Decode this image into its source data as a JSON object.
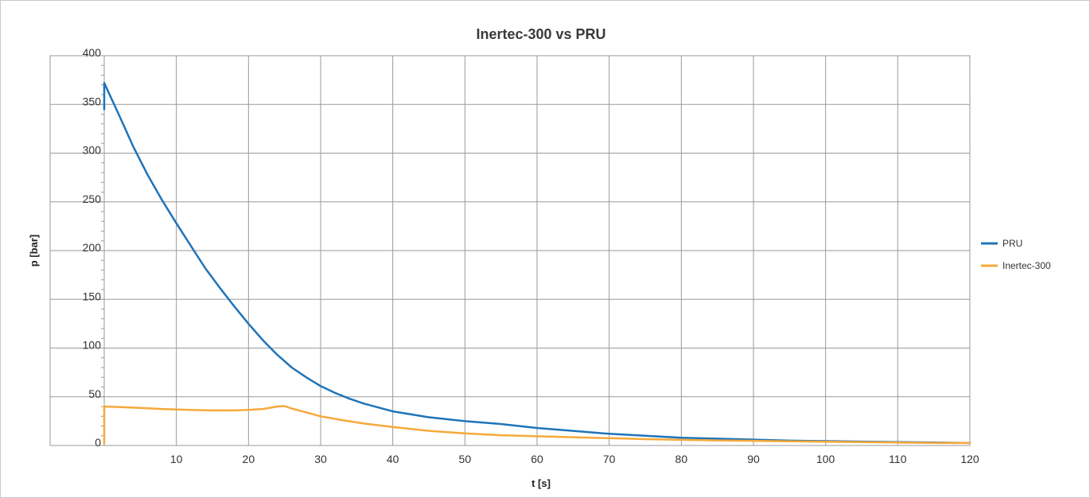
{
  "chart_data": {
    "type": "line",
    "title": "Inertec-300 vs PRU",
    "xlabel": "t [s]",
    "ylabel": "p [bar]",
    "xlim": [
      -7.5,
      120
    ],
    "ylim": [
      0,
      400
    ],
    "x_ticks": [
      "10",
      "20",
      "30",
      "40",
      "50",
      "60",
      "70",
      "80",
      "90",
      "100",
      "110",
      "120"
    ],
    "y_ticks": [
      "0",
      "50",
      "100",
      "150",
      "200",
      "250",
      "300",
      "350",
      "400"
    ],
    "grid": true,
    "legend_position": "right",
    "series": [
      {
        "name": "PRU",
        "color": "#1f74b9",
        "points": [
          [
            0,
            345
          ],
          [
            0,
            372
          ],
          [
            2,
            340
          ],
          [
            4,
            307
          ],
          [
            6,
            278
          ],
          [
            8,
            252
          ],
          [
            10,
            228
          ],
          [
            12,
            205
          ],
          [
            14,
            182
          ],
          [
            16,
            162
          ],
          [
            18,
            143
          ],
          [
            20,
            125
          ],
          [
            22,
            108
          ],
          [
            24,
            93
          ],
          [
            26,
            80
          ],
          [
            28,
            70
          ],
          [
            30,
            61
          ],
          [
            32,
            54
          ],
          [
            34,
            48
          ],
          [
            36,
            43
          ],
          [
            38,
            39
          ],
          [
            40,
            35
          ],
          [
            45,
            29
          ],
          [
            50,
            25
          ],
          [
            55,
            22
          ],
          [
            60,
            18
          ],
          [
            65,
            15
          ],
          [
            70,
            12
          ],
          [
            75,
            10
          ],
          [
            80,
            8
          ],
          [
            85,
            7
          ],
          [
            90,
            6
          ],
          [
            95,
            5
          ],
          [
            100,
            4.5
          ],
          [
            105,
            4
          ],
          [
            110,
            3.5
          ],
          [
            115,
            3
          ],
          [
            120,
            2.5
          ]
        ]
      },
      {
        "name": "Inertec-300",
        "color": "#f6a93b",
        "points": [
          [
            0,
            2
          ],
          [
            0,
            40
          ],
          [
            2,
            39.5
          ],
          [
            5,
            38.5
          ],
          [
            8,
            37.5
          ],
          [
            10,
            37
          ],
          [
            12,
            36.5
          ],
          [
            15,
            36
          ],
          [
            18,
            36
          ],
          [
            20,
            36.5
          ],
          [
            22,
            37.5
          ],
          [
            24,
            40
          ],
          [
            25,
            40.5
          ],
          [
            26,
            38
          ],
          [
            28,
            34
          ],
          [
            30,
            30
          ],
          [
            33,
            26
          ],
          [
            36,
            22.5
          ],
          [
            40,
            19
          ],
          [
            45,
            15
          ],
          [
            50,
            12.5
          ],
          [
            55,
            10.5
          ],
          [
            60,
            9.5
          ],
          [
            65,
            8.5
          ],
          [
            70,
            7.5
          ],
          [
            75,
            6.5
          ],
          [
            80,
            5.8
          ],
          [
            85,
            5.2
          ],
          [
            90,
            4.8
          ],
          [
            95,
            4.3
          ],
          [
            100,
            3.8
          ],
          [
            105,
            3.4
          ],
          [
            110,
            3
          ],
          [
            115,
            2.7
          ],
          [
            120,
            2.5
          ]
        ]
      }
    ]
  }
}
